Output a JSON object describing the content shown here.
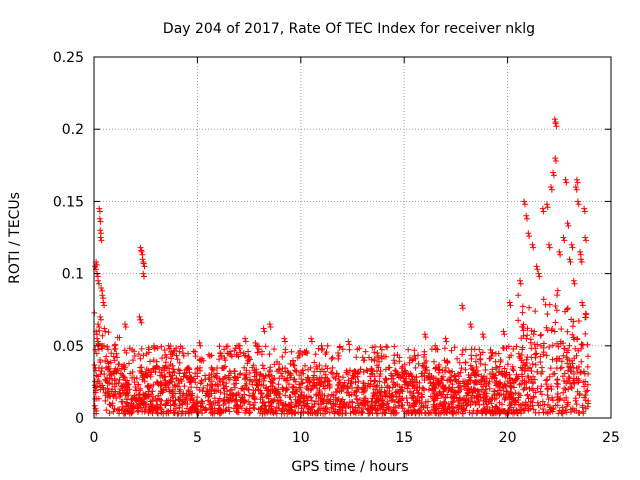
{
  "chart_data": {
    "type": "scatter",
    "title": "Day 204 of 2017, Rate Of TEC Index for receiver nklg",
    "xlabel": "GPS time / hours",
    "ylabel": "ROTI / TECUs",
    "xlim": [
      0,
      25
    ],
    "ylim": [
      0,
      0.25
    ],
    "x_ticks": [
      "0",
      "5",
      "10",
      "15",
      "20",
      "25"
    ],
    "y_ticks": [
      "0",
      "0.05",
      "0.1",
      "0.15",
      "0.2",
      "0.25"
    ],
    "grid": true,
    "marker": "+",
    "color": "#ff0000",
    "series": [
      {
        "points": [
          [
            0.05,
            0.105
          ],
          [
            0.1,
            0.108
          ],
          [
            0.15,
            0.1
          ],
          [
            0.2,
            0.095
          ],
          [
            0.25,
            0.145
          ],
          [
            0.28,
            0.138
          ],
          [
            0.3,
            0.13
          ],
          [
            0.32,
            0.125
          ],
          [
            0.35,
            0.09
          ],
          [
            0.4,
            0.085
          ],
          [
            0.45,
            0.08
          ],
          [
            0.3,
            0.07
          ],
          [
            0.2,
            0.065
          ],
          [
            0.1,
            0.06
          ],
          [
            0.5,
            0.062
          ],
          [
            0.15,
            0.055
          ],
          [
            0.35,
            0.05
          ],
          [
            2.25,
            0.118
          ],
          [
            2.3,
            0.115
          ],
          [
            2.35,
            0.11
          ],
          [
            2.4,
            0.107
          ],
          [
            2.38,
            0.1
          ],
          [
            2.2,
            0.07
          ],
          [
            2.25,
            0.068
          ],
          [
            1.5,
            0.065
          ],
          [
            1.0,
            0.05
          ],
          [
            2.9,
            0.05
          ],
          [
            3.6,
            0.05
          ],
          [
            5.1,
            0.052
          ],
          [
            4.3,
            0.045
          ],
          [
            6.1,
            0.045
          ],
          [
            7.0,
            0.05
          ],
          [
            7.3,
            0.055
          ],
          [
            7.8,
            0.052
          ],
          [
            8.2,
            0.062
          ],
          [
            8.5,
            0.065
          ],
          [
            9.2,
            0.055
          ],
          [
            9.9,
            0.045
          ],
          [
            10.5,
            0.055
          ],
          [
            11.0,
            0.05
          ],
          [
            11.8,
            0.045
          ],
          [
            12.3,
            0.053
          ],
          [
            13.0,
            0.042
          ],
          [
            13.7,
            0.045
          ],
          [
            14.5,
            0.04
          ],
          [
            15.5,
            0.043
          ],
          [
            16.0,
            0.058
          ],
          [
            16.5,
            0.05
          ],
          [
            17.0,
            0.055
          ],
          [
            17.8,
            0.078
          ],
          [
            18.2,
            0.065
          ],
          [
            18.8,
            0.058
          ],
          [
            19.2,
            0.045
          ],
          [
            19.8,
            0.06
          ],
          [
            20.1,
            0.08
          ],
          [
            20.6,
            0.095
          ],
          [
            20.8,
            0.15
          ],
          [
            20.9,
            0.14
          ],
          [
            21.0,
            0.128
          ],
          [
            21.2,
            0.12
          ],
          [
            21.4,
            0.105
          ],
          [
            21.5,
            0.1
          ],
          [
            21.7,
            0.145
          ],
          [
            21.9,
            0.148
          ],
          [
            22.0,
            0.12
          ],
          [
            22.1,
            0.16
          ],
          [
            22.2,
            0.17
          ],
          [
            22.3,
            0.18
          ],
          [
            22.28,
            0.207
          ],
          [
            22.32,
            0.204
          ],
          [
            22.5,
            0.115
          ],
          [
            22.7,
            0.125
          ],
          [
            22.8,
            0.165
          ],
          [
            22.9,
            0.135
          ],
          [
            23.0,
            0.11
          ],
          [
            23.1,
            0.12
          ],
          [
            23.2,
            0.095
          ],
          [
            23.3,
            0.16
          ],
          [
            23.35,
            0.165
          ],
          [
            23.4,
            0.15
          ],
          [
            23.5,
            0.115
          ],
          [
            23.55,
            0.11
          ],
          [
            23.6,
            0.08
          ],
          [
            23.7,
            0.145
          ],
          [
            23.75,
            0.125
          ]
        ]
      }
    ],
    "dense_band": {
      "description_free": true,
      "x_range": [
        0,
        23.9
      ],
      "typical_range": [
        0.003,
        0.035
      ],
      "excursions_to": 0.05
    }
  }
}
